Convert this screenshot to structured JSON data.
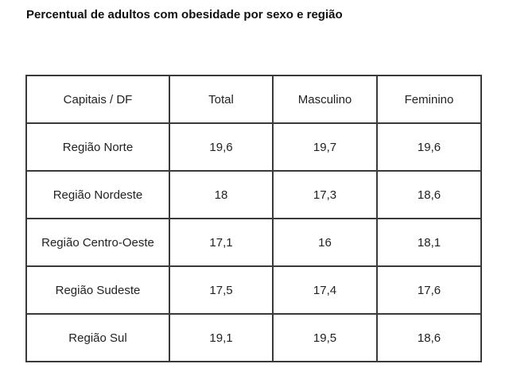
{
  "title": "Percentual de adultos com obesidade por sexo e região",
  "chart_data": {
    "type": "table",
    "title": "Percentual de adultos com obesidade por sexo e região",
    "columns": [
      "Capitais / DF",
      "Total",
      "Masculino",
      "Feminino"
    ],
    "rows": [
      [
        "Região Norte",
        "19,6",
        "19,7",
        "19,6"
      ],
      [
        "Região Nordeste",
        "18",
        "17,3",
        "18,6"
      ],
      [
        "Região Centro-Oeste",
        "17,1",
        "16",
        "18,1"
      ],
      [
        "Região Sudeste",
        "17,5",
        "17,4",
        "17,6"
      ],
      [
        "Região Sul",
        "19,1",
        "19,5",
        "18,6"
      ]
    ]
  }
}
